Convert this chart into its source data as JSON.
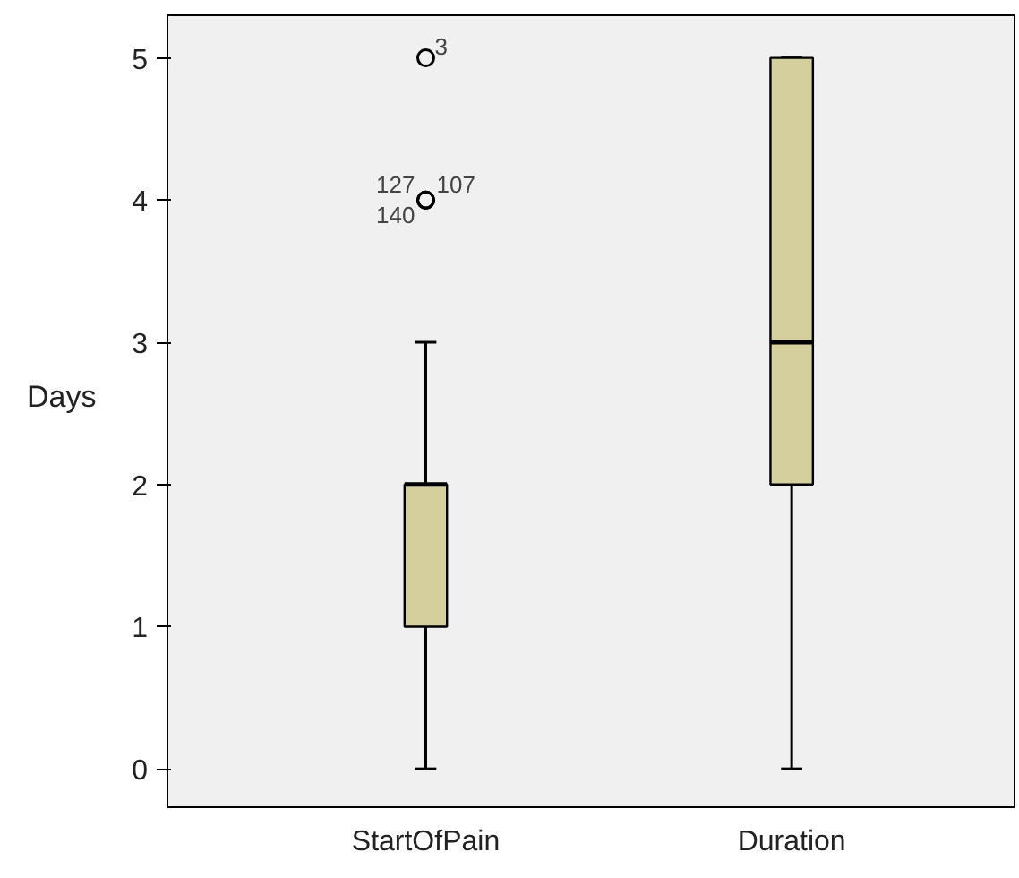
{
  "chart_data": {
    "type": "box",
    "ylabel": "Days",
    "categories": [
      "StartOfPain",
      "Duration"
    ],
    "boxes": [
      {
        "low": 0,
        "q1": 1,
        "median": 2,
        "q3": 2,
        "high": 3,
        "outliers": [
          5,
          4,
          4,
          4
        ]
      },
      {
        "low": 0,
        "q1": 2,
        "median": 3,
        "q3": 5,
        "high": 5
      }
    ],
    "color": "#d4cf9c",
    "ylim": [
      -0.27,
      5.3
    ],
    "yticks": [
      0,
      1,
      2,
      3,
      4,
      5
    ],
    "grid": false,
    "annotations": [
      "3",
      "127",
      "107",
      "140"
    ]
  }
}
